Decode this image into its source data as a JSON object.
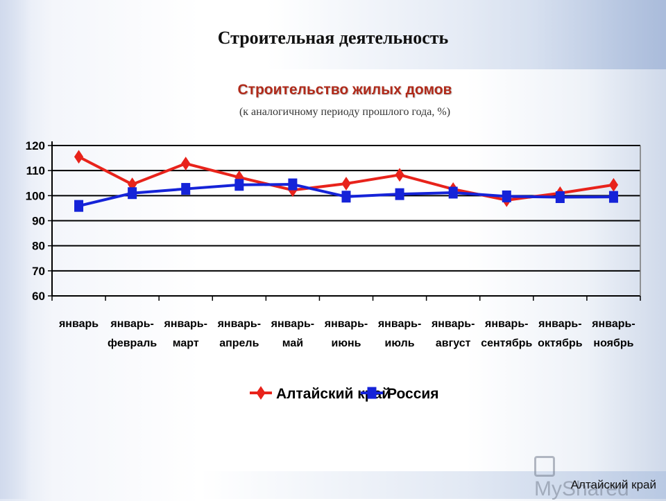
{
  "slide": {
    "title": "Строительная деятельность",
    "footer_label": "Алтайский край",
    "logo_text": "MyShared"
  },
  "colors": {
    "series_1": "#e8231b",
    "series_2": "#1523d8"
  },
  "chart_data": {
    "type": "line",
    "title": "Строительство жилых домов",
    "subtitle": "(к аналогичному периоду прошлого года, %)",
    "xlabel": "",
    "ylabel": "",
    "ylim": [
      60,
      120
    ],
    "yticks": [
      60,
      70,
      80,
      90,
      100,
      110,
      120
    ],
    "grid": true,
    "legend_position": "bottom",
    "categories": [
      [
        "январь"
      ],
      [
        "январь-",
        "февраль"
      ],
      [
        "январь-",
        "март"
      ],
      [
        "январь-",
        "апрель"
      ],
      [
        "январь-",
        "май"
      ],
      [
        "январь-",
        "июнь"
      ],
      [
        "январь-",
        "июль"
      ],
      [
        "январь-",
        "август"
      ],
      [
        "январь-",
        "сентябрь"
      ],
      [
        "январь-",
        "октябрь"
      ],
      [
        "январь-",
        "ноябрь"
      ]
    ],
    "series": [
      {
        "name": "Алтайский край",
        "marker": "diamond",
        "values": [
          115.5,
          104.5,
          112.8,
          107.3,
          102.2,
          104.8,
          108.3,
          102.6,
          98.2,
          101.0,
          104.3
        ]
      },
      {
        "name": "Россия",
        "marker": "square",
        "values": [
          95.9,
          101.0,
          102.7,
          104.3,
          104.5,
          99.6,
          100.6,
          101.2,
          99.7,
          99.4,
          99.5
        ]
      }
    ]
  }
}
